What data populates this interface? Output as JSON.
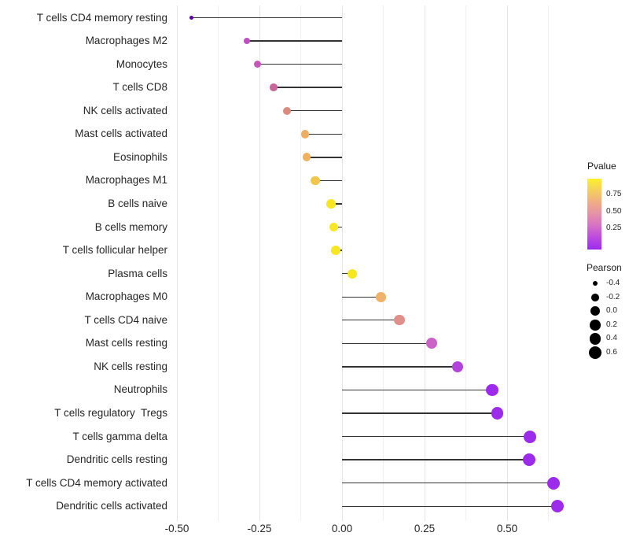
{
  "chart_data": {
    "type": "lollipop",
    "orientation": "horizontal",
    "title": "",
    "xlabel": "",
    "ylabel": "",
    "grid": "major and minor vertical gridlines, white background (theme_minimal)",
    "xlim": [
      -0.51,
      0.71
    ],
    "x_ticks": [
      "-0.50",
      "-0.25",
      "0.00",
      "0.25",
      "0.50"
    ],
    "x_tick_values": [
      -0.5,
      -0.25,
      0,
      0.25,
      0.5
    ],
    "x_minor_values": [
      -0.375,
      -0.125,
      0.125,
      0.375,
      0.625
    ],
    "stem_baseline": 0,
    "points": [
      {
        "label": "T cells CD4 memory resting",
        "pearson": -0.455,
        "color": "#5B02A3"
      },
      {
        "label": "Macrophages M2",
        "pearson": -0.288,
        "color": "#C04FC4"
      },
      {
        "label": "Monocytes",
        "pearson": -0.255,
        "color": "#C457BB"
      },
      {
        "label": "T cells CD8",
        "pearson": -0.207,
        "color": "#C96697"
      },
      {
        "label": "NK cells activated",
        "pearson": -0.167,
        "color": "#DB8A7E"
      },
      {
        "label": "Mast cells activated",
        "pearson": -0.112,
        "color": "#EDAE62"
      },
      {
        "label": "Eosinophils",
        "pearson": -0.107,
        "color": "#EEB25F"
      },
      {
        "label": "Macrophages M1",
        "pearson": -0.081,
        "color": "#F2C64C"
      },
      {
        "label": "B cells naive",
        "pearson": -0.033,
        "color": "#F8E621"
      },
      {
        "label": "B cells memory",
        "pearson": -0.025,
        "color": "#F8E621"
      },
      {
        "label": "T cells follicular helper",
        "pearson": -0.019,
        "color": "#F8E621"
      },
      {
        "label": "Plasma cells",
        "pearson": 0.031,
        "color": "#F6E71F"
      },
      {
        "label": "Macrophages M0",
        "pearson": 0.117,
        "color": "#F0B169"
      },
      {
        "label": "T cells CD4 naive",
        "pearson": 0.174,
        "color": "#E08F8A"
      },
      {
        "label": "Mast cells resting",
        "pearson": 0.271,
        "color": "#CA63C6"
      },
      {
        "label": "NK cells resting",
        "pearson": 0.35,
        "color": "#B243DC"
      },
      {
        "label": "Neutrophils",
        "pearson": 0.455,
        "color": "#9D2BEC"
      },
      {
        "label": "T cells regulatory  Tregs",
        "pearson": 0.47,
        "color": "#9D2BEC"
      },
      {
        "label": "T cells gamma delta",
        "pearson": 0.569,
        "color": "#9D2BEC"
      },
      {
        "label": "Dendritic cells resting",
        "pearson": 0.567,
        "color": "#9D2BEC"
      },
      {
        "label": "T cells CD4 memory activated",
        "pearson": 0.64,
        "color": "#9D2BEC"
      },
      {
        "label": "Dendritic cells activated",
        "pearson": 0.652,
        "color": "#9D2BEC"
      }
    ],
    "legends": {
      "pvalue": {
        "title": "Pvalue",
        "ticks": [
          "0.75",
          "0.50",
          "0.25"
        ],
        "gradient_top_to_bottom": [
          "#FCF12B",
          "#F5CE5E",
          "#EFAD85",
          "#E590A8",
          "#D571C6",
          "#BC49E0",
          "#9B2BF0"
        ]
      },
      "pearson": {
        "title": "Pearson",
        "entries": [
          {
            "label": "-0.4",
            "value": -0.4
          },
          {
            "label": "-0.2",
            "value": -0.2
          },
          {
            "label": "0.0",
            "value": 0.0
          },
          {
            "label": "0.2",
            "value": 0.2
          },
          {
            "label": "0.4",
            "value": 0.4
          },
          {
            "label": "0.6",
            "value": 0.6
          }
        ]
      }
    },
    "colors": {
      "background": "#FFFFFF",
      "stem": "#333333",
      "major_grid": "#E4E4E4",
      "minor_grid": "#F1F1F1",
      "axis_text": "#262626"
    }
  }
}
